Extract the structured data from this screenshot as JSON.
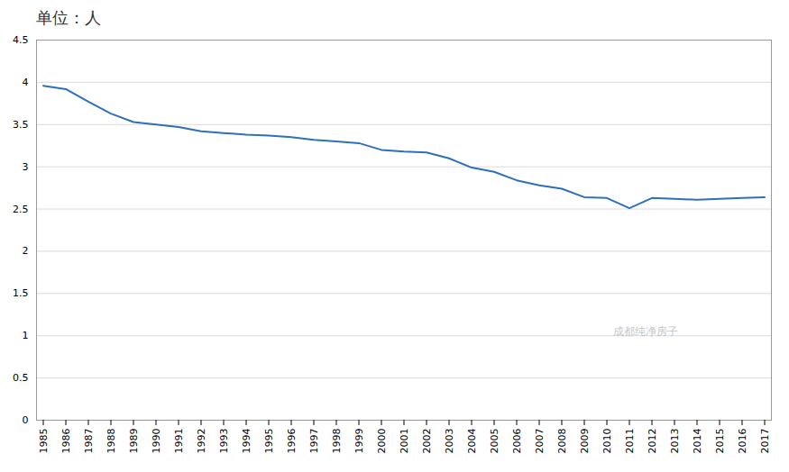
{
  "chart_data": {
    "type": "line",
    "title": "单位：人",
    "x": [
      1985,
      1986,
      1987,
      1988,
      1989,
      1990,
      1991,
      1992,
      1993,
      1994,
      1995,
      1996,
      1997,
      1998,
      1999,
      2000,
      2001,
      2002,
      2003,
      2004,
      2005,
      2006,
      2007,
      2008,
      2009,
      2010,
      2011,
      2012,
      2013,
      2014,
      2015,
      2016,
      2017
    ],
    "values": [
      3.96,
      3.92,
      3.77,
      3.63,
      3.53,
      3.5,
      3.47,
      3.42,
      3.4,
      3.38,
      3.37,
      3.35,
      3.32,
      3.3,
      3.28,
      3.2,
      3.18,
      3.17,
      3.1,
      2.99,
      2.94,
      2.84,
      2.78,
      2.74,
      2.64,
      2.63,
      2.51,
      2.63,
      2.62,
      2.61,
      2.62,
      2.63,
      2.64
    ],
    "color": "#2e6fbe",
    "xlim": [
      1984.7,
      2017.3
    ],
    "xticks": [
      1985,
      1986,
      1987,
      1988,
      1989,
      1990,
      1991,
      1992,
      1993,
      1994,
      1995,
      1996,
      1997,
      1998,
      1999,
      2000,
      2001,
      2002,
      2003,
      2004,
      2005,
      2006,
      2007,
      2008,
      2009,
      2010,
      2011,
      2012,
      2013,
      2014,
      2015,
      2016,
      2017
    ],
    "ylim": [
      0,
      4.5
    ],
    "yticks": [
      0,
      0.5,
      1,
      1.5,
      2,
      2.5,
      3,
      3.5,
      4,
      4.5
    ],
    "grid": true,
    "annotations": [
      {
        "text": "成都纯净房子"
      }
    ]
  }
}
